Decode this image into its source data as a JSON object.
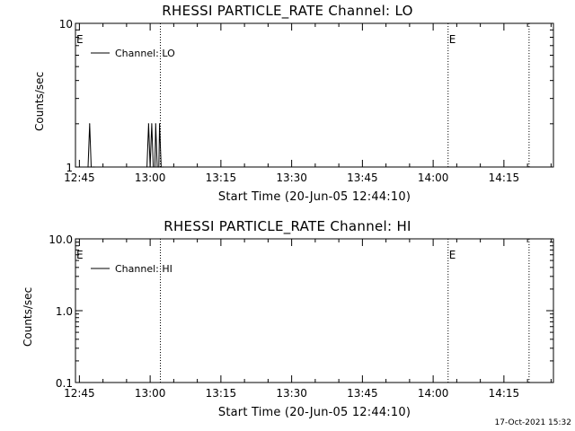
{
  "footer": {
    "timestamp": "17-Oct-2021 15:32"
  },
  "chart_data": [
    {
      "type": "line",
      "title": "RHESSI PARTICLE_RATE Channel: LO",
      "xlabel": "Start Time (20-Jun-05 12:44:10)",
      "ylabel": "Counts/sec",
      "x_ticks": [
        "12:45",
        "13:00",
        "13:15",
        "13:30",
        "13:45",
        "14:00",
        "14:15"
      ],
      "xlim": [
        "12:44:10",
        "14:25:30"
      ],
      "yscale": "log",
      "ylim": [
        1,
        10
      ],
      "y_tick_labels": [
        "1",
        "10"
      ],
      "legend": {
        "position": "top-left",
        "entries": [
          "Channel: LO"
        ]
      },
      "vlines": [
        "13:02:10",
        "14:03:10",
        "14:20:20"
      ],
      "event_markers": [
        {
          "time": "12:44:10",
          "label": "E"
        },
        {
          "time": "14:03:10",
          "label": "E"
        }
      ],
      "series": [
        {
          "name": "Channel: LO",
          "x": [
            "12:46:50",
            "12:47:10",
            "12:47:30",
            "12:47:50",
            "12:48:10",
            "12:59:20",
            "12:59:40",
            "13:00:00",
            "13:00:20",
            "13:00:40",
            "13:01:00",
            "13:01:10",
            "13:01:30",
            "13:01:50",
            "13:02:00",
            "13:02:20",
            "13:02:40"
          ],
          "values": [
            1,
            2,
            1,
            1,
            1,
            1,
            2,
            1,
            2,
            1,
            1,
            2,
            1,
            1,
            2,
            1,
            1
          ]
        }
      ]
    },
    {
      "type": "line",
      "title": "RHESSI PARTICLE_RATE Channel: HI",
      "xlabel": "Start Time (20-Jun-05 12:44:10)",
      "ylabel": "Counts/sec",
      "x_ticks": [
        "12:45",
        "13:00",
        "13:15",
        "13:30",
        "13:45",
        "14:00",
        "14:15"
      ],
      "xlim": [
        "12:44:10",
        "14:25:30"
      ],
      "yscale": "log",
      "ylim": [
        0.1,
        10
      ],
      "y_tick_labels": [
        "0.1",
        "1.0",
        "10.0"
      ],
      "legend": {
        "position": "top-left",
        "entries": [
          "Channel: HI"
        ]
      },
      "vlines": [
        "13:02:10",
        "14:03:10",
        "14:20:20"
      ],
      "event_markers": [
        {
          "time": "12:44:10",
          "label": "E"
        },
        {
          "time": "14:03:10",
          "label": "E"
        }
      ],
      "series": [
        {
          "name": "Channel: HI",
          "x": [],
          "values": []
        }
      ]
    }
  ]
}
